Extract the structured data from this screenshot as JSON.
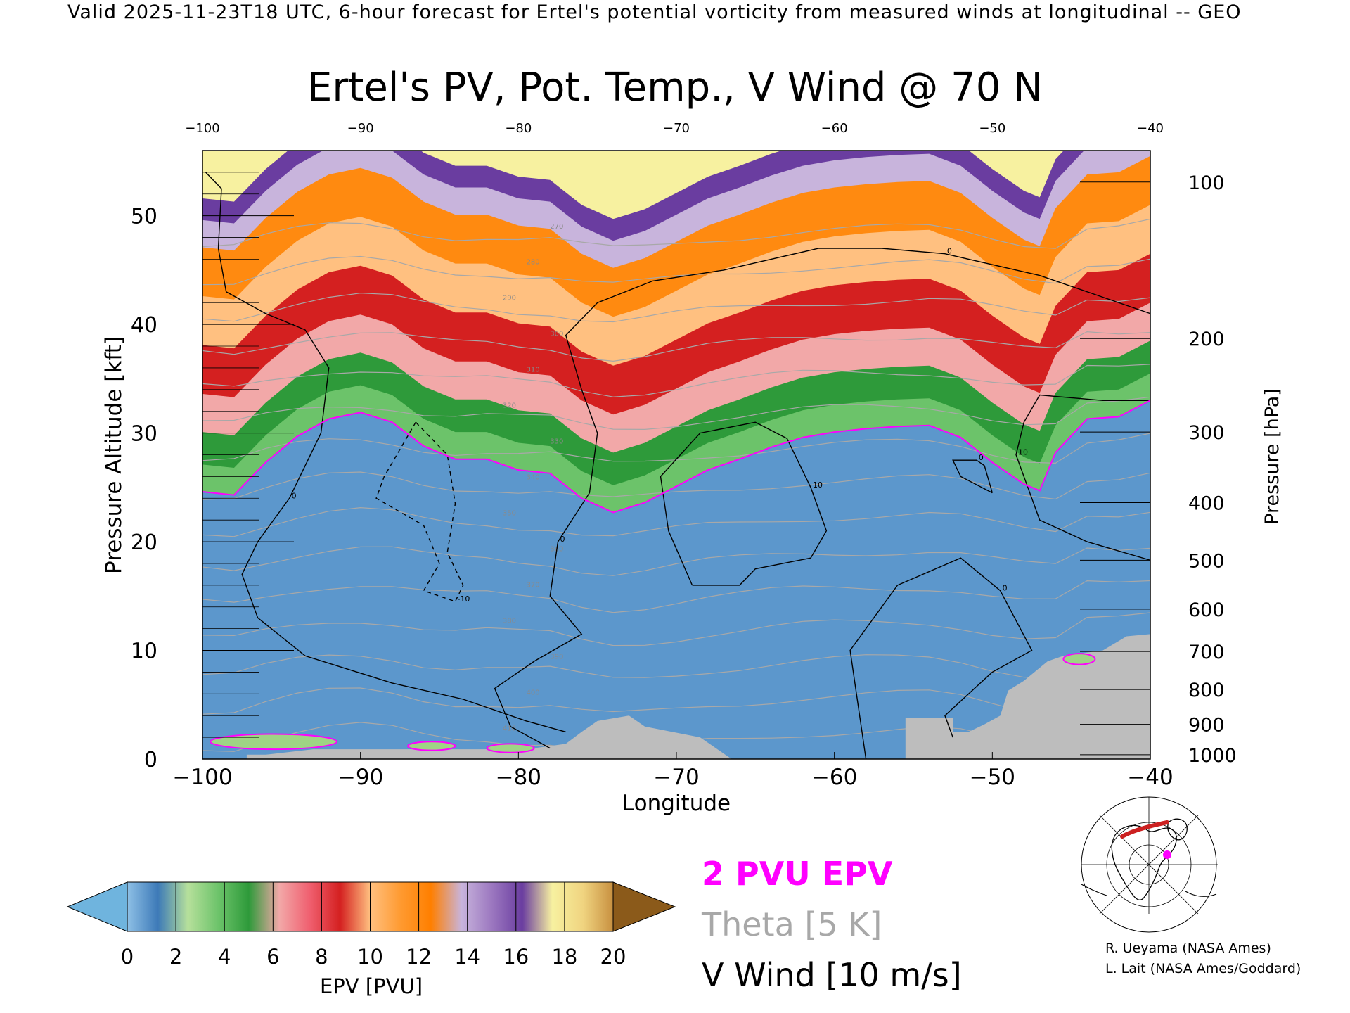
{
  "header_text": "Valid 2025-11-23T18 UTC, 6-hour forecast for Ertel's potential vorticity from measured winds at longitudinal -- GEO",
  "chart_data": {
    "type": "heatmap",
    "title": "Ertel's PV, Pot. Temp., V Wind @ 70 N",
    "xlabel": "Longitude",
    "ylabel_left": "Pressure Altitude [kft]",
    "ylabel_right": "Pressure [hPa]",
    "xlim": [
      -100,
      -40
    ],
    "ylim": [
      0,
      56
    ],
    "x_ticks": [
      -100,
      -90,
      -80,
      -70,
      -60,
      -50,
      -40
    ],
    "x_tick_labels": [
      "−100",
      "−90",
      "−80",
      "−70",
      "−60",
      "−50",
      "−40"
    ],
    "top_tick_labels": [
      "−100",
      "−90",
      "−80",
      "−70",
      "−60",
      "−50",
      "−40"
    ],
    "y_ticks": [
      0,
      10,
      20,
      30,
      40,
      50
    ],
    "right_ticks": [
      {
        "label": "100",
        "kft": 53.1
      },
      {
        "label": "200",
        "kft": 38.7
      },
      {
        "label": "300",
        "kft": 30.1
      },
      {
        "label": "400",
        "kft": 23.6
      },
      {
        "label": "500",
        "kft": 18.3
      },
      {
        "label": "600",
        "kft": 13.8
      },
      {
        "label": "700",
        "kft": 9.9
      },
      {
        "label": "800",
        "kft": 6.4
      },
      {
        "label": "900",
        "kft": 3.2
      },
      {
        "label": "1000",
        "kft": 0.4
      }
    ],
    "epv_2pvu_boundary": [
      {
        "lon": -100,
        "kft": 24.6
      },
      {
        "lon": -98,
        "kft": 24.3
      },
      {
        "lon": -96,
        "kft": 27.3
      },
      {
        "lon": -94,
        "kft": 29.7
      },
      {
        "lon": -92,
        "kft": 31.3
      },
      {
        "lon": -90,
        "kft": 31.9
      },
      {
        "lon": -88,
        "kft": 31.0
      },
      {
        "lon": -86,
        "kft": 28.8
      },
      {
        "lon": -84,
        "kft": 27.6
      },
      {
        "lon": -82,
        "kft": 27.6
      },
      {
        "lon": -80,
        "kft": 26.6
      },
      {
        "lon": -78,
        "kft": 26.3
      },
      {
        "lon": -76,
        "kft": 24.0
      },
      {
        "lon": -74,
        "kft": 22.7
      },
      {
        "lon": -72,
        "kft": 23.6
      },
      {
        "lon": -70,
        "kft": 25.1
      },
      {
        "lon": -68,
        "kft": 26.6
      },
      {
        "lon": -66,
        "kft": 27.6
      },
      {
        "lon": -64,
        "kft": 28.7
      },
      {
        "lon": -62,
        "kft": 29.6
      },
      {
        "lon": -60,
        "kft": 30.1
      },
      {
        "lon": -58,
        "kft": 30.4
      },
      {
        "lon": -56,
        "kft": 30.6
      },
      {
        "lon": -54,
        "kft": 30.7
      },
      {
        "lon": -52,
        "kft": 29.6
      },
      {
        "lon": -50,
        "kft": 27.3
      },
      {
        "lon": -48,
        "kft": 25.3
      },
      {
        "lon": -47,
        "kft": 24.7
      },
      {
        "lon": -46,
        "kft": 28.2
      },
      {
        "lon": -44,
        "kft": 31.3
      },
      {
        "lon": -42,
        "kft": 31.5
      },
      {
        "lon": -40,
        "kft": 33.0
      }
    ],
    "epv_layers_kft_above_2pvu": [
      {
        "epv": 2,
        "offset": 0
      },
      {
        "epv": 4,
        "offset": 2.5
      },
      {
        "epv": 6,
        "offset": 5.5
      },
      {
        "epv": 8,
        "offset": 9.0
      },
      {
        "epv": 10,
        "offset": 13.5
      },
      {
        "epv": 12,
        "offset": 18.0
      },
      {
        "epv": 14,
        "offset": 22.5
      },
      {
        "epv": 16,
        "offset": 25.0
      },
      {
        "epv": 18,
        "offset": 27.0
      }
    ],
    "theta_labels": [
      "410",
      "400",
      "390",
      "380",
      "370",
      "360",
      "350",
      "340",
      "330",
      "320",
      "310",
      "300",
      "290",
      "280",
      "270"
    ],
    "v_wind_labels": [
      "0",
      "10",
      "-10"
    ],
    "v_wind_contours": [
      {
        "name": "v0-west",
        "label": "0",
        "points": [
          [
            -99.8,
            54.0
          ],
          [
            -98.8,
            52.5
          ],
          [
            -99.0,
            47.0
          ],
          [
            -98.5,
            43.0
          ],
          [
            -96.0,
            41.0
          ],
          [
            -93.5,
            39.5
          ],
          [
            -92.0,
            36.0
          ],
          [
            -92.5,
            30.0
          ],
          [
            -94.5,
            24.0
          ],
          [
            -96.5,
            20.0
          ],
          [
            -97.5,
            17.0
          ],
          [
            -96.5,
            13.0
          ],
          [
            -93.5,
            9.5
          ],
          [
            -88.0,
            7.0
          ],
          [
            -83.5,
            5.5
          ],
          [
            -79.5,
            3.5
          ],
          [
            -77.0,
            2.5
          ]
        ]
      },
      {
        "name": "v0-mid",
        "label": "0",
        "points": [
          [
            -67.0,
            45.0
          ],
          [
            -71.5,
            44.0
          ],
          [
            -75.0,
            42.0
          ],
          [
            -77.0,
            39.0
          ],
          [
            -76.0,
            34.0
          ],
          [
            -75.0,
            30.0
          ],
          [
            -75.5,
            24.5
          ],
          [
            -77.5,
            20.0
          ],
          [
            -78.0,
            15.0
          ],
          [
            -76.0,
            11.5
          ],
          [
            -79.0,
            9.0
          ],
          [
            -81.5,
            6.5
          ],
          [
            -80.5,
            3.0
          ],
          [
            -78.0,
            1.0
          ]
        ]
      },
      {
        "name": "v0-top",
        "label": "0",
        "points": [
          [
            -67.0,
            45.0
          ],
          [
            -61.0,
            47.0
          ],
          [
            -57.0,
            47.0
          ],
          [
            -53.0,
            46.5
          ],
          [
            -47.0,
            44.5
          ],
          [
            -43.0,
            42.5
          ],
          [
            -40.0,
            41.0
          ]
        ]
      },
      {
        "name": "v10-east",
        "label": "10",
        "points": [
          [
            -40.0,
            33.0
          ],
          [
            -43.0,
            33.0
          ],
          [
            -47.0,
            33.5
          ],
          [
            -48.0,
            31.0
          ],
          [
            -48.5,
            28.0
          ],
          [
            -47.0,
            22.0
          ],
          [
            -44.0,
            20.0
          ],
          [
            -40.0,
            18.3
          ]
        ]
      },
      {
        "name": "v10-center",
        "label": "10",
        "points": [
          [
            -69.0,
            16.0
          ],
          [
            -70.5,
            21.0
          ],
          [
            -71.0,
            26.0
          ],
          [
            -68.5,
            30.0
          ],
          [
            -65.0,
            31.0
          ],
          [
            -63.0,
            29.5
          ],
          [
            -61.5,
            25.0
          ],
          [
            -60.5,
            21.0
          ],
          [
            -61.5,
            18.5
          ],
          [
            -65.0,
            17.5
          ],
          [
            -66.0,
            16.0
          ],
          [
            -69.0,
            16.0
          ]
        ]
      },
      {
        "name": "v0-east-small",
        "label": "0",
        "points": [
          [
            -50.0,
            24.5
          ],
          [
            -52.0,
            26.0
          ],
          [
            -52.5,
            27.5
          ],
          [
            -51.0,
            27.5
          ],
          [
            -50.5,
            27.0
          ],
          [
            -50.0,
            24.5
          ]
        ]
      },
      {
        "name": "v0-lower",
        "label": "0",
        "points": [
          [
            -58.0,
            0.0
          ],
          [
            -59.0,
            10.0
          ],
          [
            -56.0,
            16.0
          ],
          [
            -52.0,
            18.5
          ],
          [
            -49.5,
            15.5
          ],
          [
            -47.5,
            10.0
          ],
          [
            -50.0,
            8.0
          ],
          [
            -53.0,
            4.0
          ],
          [
            -52.5,
            2.0
          ]
        ]
      },
      {
        "name": "v10-neg-dashed",
        "label": "-10",
        "points": [
          [
            -86.5,
            31.0
          ],
          [
            -88.5,
            26.0
          ],
          [
            -89.0,
            24.0
          ],
          [
            -86.0,
            21.5
          ],
          [
            -85.0,
            18.0
          ],
          [
            -86.0,
            15.5
          ],
          [
            -84.0,
            14.5
          ],
          [
            -83.5,
            16.0
          ],
          [
            -84.5,
            19.0
          ],
          [
            -84.0,
            23.5
          ],
          [
            -84.5,
            28.0
          ],
          [
            -86.5,
            31.0
          ]
        ],
        "dashed": true
      }
    ],
    "terrain_steps": [
      [
        -97.2,
        0.4
      ],
      [
        -96.0,
        0.4
      ],
      [
        -93.0,
        0.9
      ],
      [
        -91.5,
        0.9
      ],
      [
        -85.0,
        0.9
      ],
      [
        -83.5,
        0.9
      ],
      [
        -79.5,
        0.9
      ],
      [
        -77.0,
        1.4
      ],
      [
        -76.0,
        2.5
      ],
      [
        -75.0,
        3.5
      ],
      [
        -73.0,
        4.0
      ],
      [
        -72.0,
        3.0
      ],
      [
        -68.5,
        2.0
      ],
      [
        -67.5,
        1.0
      ],
      [
        -66.5,
        0.0
      ],
      [
        -55.5,
        0.0
      ],
      [
        -55.5,
        3.8
      ],
      [
        -52.5,
        3.8
      ],
      [
        -52.5,
        2.5
      ],
      [
        -51.5,
        2.5
      ],
      [
        -50.5,
        3.2
      ],
      [
        -49.5,
        4.0
      ],
      [
        -49.0,
        6.3
      ],
      [
        -48.0,
        7.2
      ],
      [
        -47.0,
        8.4
      ],
      [
        -46.5,
        9.0
      ],
      [
        -45.5,
        9.5
      ],
      [
        -43.0,
        10.0
      ],
      [
        -41.5,
        11.3
      ],
      [
        -40.0,
        11.5
      ]
    ],
    "colorbar": {
      "label": "EPV [PVU]",
      "ticks": [
        "0",
        "2",
        "4",
        "6",
        "8",
        "10",
        "12",
        "14",
        "16",
        "18",
        "20"
      ],
      "colors": [
        "#6fb4de",
        "#8ec0e6",
        "#3d7ab8",
        "#b6e09b",
        "#6cc36a",
        "#2e9a3a",
        "#f2a8a8",
        "#f06070",
        "#d42020",
        "#ffc080",
        "#ff9a30",
        "#ff7f00",
        "#c8b4dc",
        "#9c78c0",
        "#6a3da0",
        "#f7f1a0",
        "#f0d480",
        "#c89040",
        "#8b5a1a"
      ]
    },
    "legend": {
      "pvu": "2 PVU EPV",
      "theta": "Theta [5 K]",
      "wind": "V Wind [10 m/s]",
      "pvu_color": "#ff00ff",
      "theta_color": "#a8a8a8",
      "wind_color": "#000000"
    },
    "credits": [
      "R. Ueyama (NASA Ames)",
      "L. Lait (NASA Ames/Goddard)"
    ]
  }
}
